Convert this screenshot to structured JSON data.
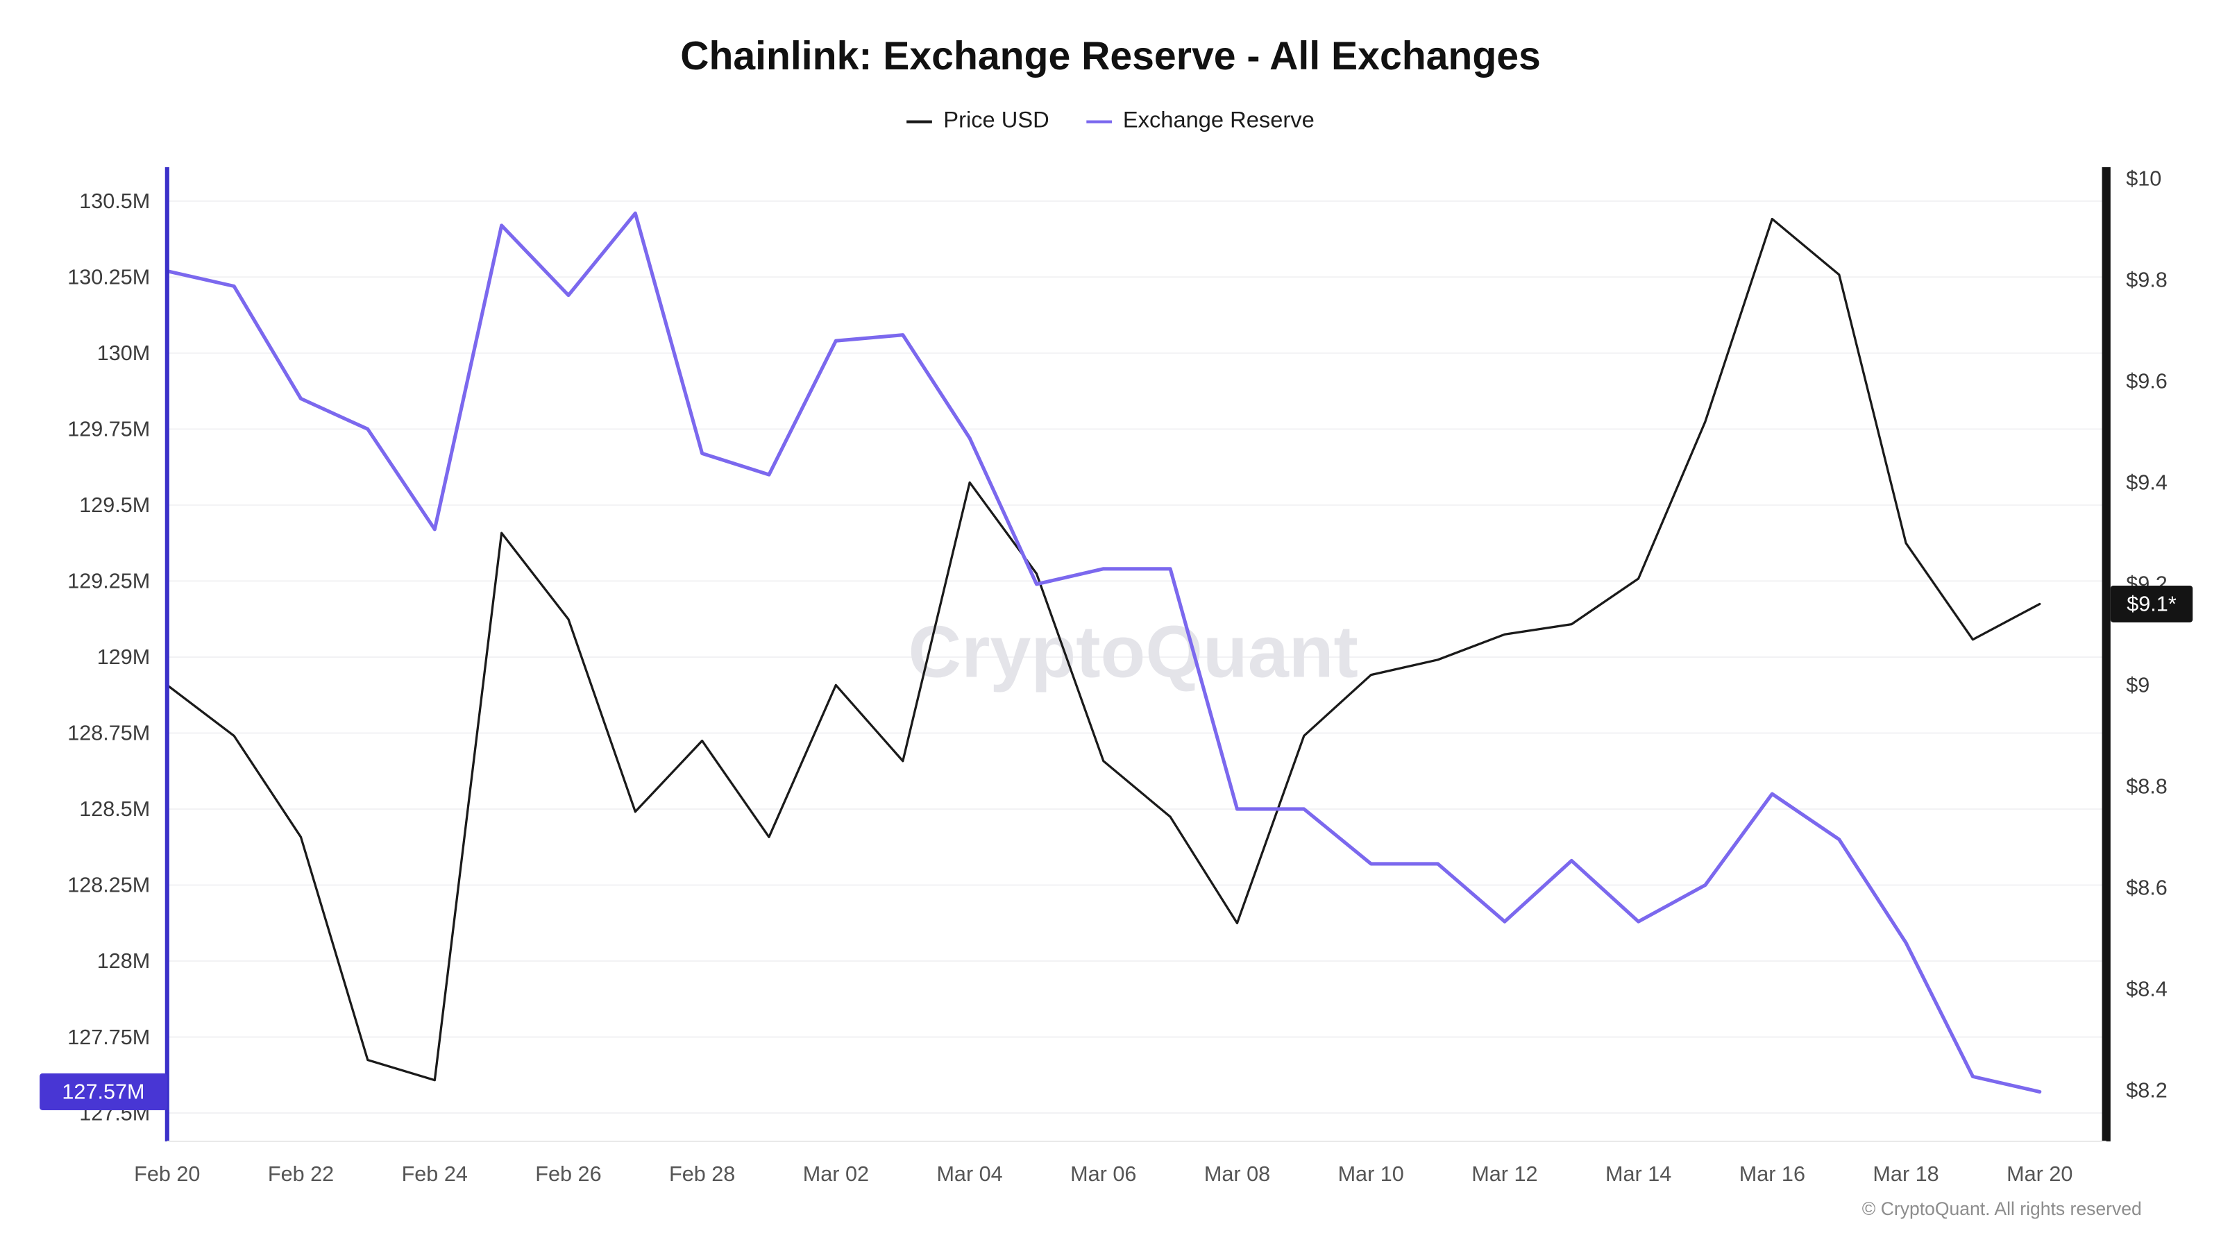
{
  "title": "Chainlink: Exchange Reserve - All Exchanges",
  "legend": [
    {
      "label": "Price USD",
      "color": "#1a1a1a"
    },
    {
      "label": "Exchange Reserve",
      "color": "#7b68ee"
    }
  ],
  "watermark": "CryptoQuant",
  "footer": "© CryptoQuant. All rights reserved",
  "badges": {
    "left": {
      "text": "127.57M",
      "color": "#4836d4"
    },
    "right": {
      "text": "$9.1*",
      "color": "#141414"
    }
  },
  "chart_data": {
    "type": "line",
    "x": [
      "Feb 20",
      "Feb 21",
      "Feb 22",
      "Feb 23",
      "Feb 24",
      "Feb 25",
      "Feb 26",
      "Feb 27",
      "Feb 28",
      "Mar 01",
      "Mar 02",
      "Mar 03",
      "Mar 04",
      "Mar 05",
      "Mar 06",
      "Mar 07",
      "Mar 08",
      "Mar 09",
      "Mar 10",
      "Mar 11",
      "Mar 12",
      "Mar 13",
      "Mar 14",
      "Mar 15",
      "Mar 16",
      "Mar 17",
      "Mar 18",
      "Mar 19",
      "Mar 20"
    ],
    "x_tick_labels": [
      "Feb 20",
      "Feb 22",
      "Feb 24",
      "Feb 26",
      "Feb 28",
      "Mar 02",
      "Mar 04",
      "Mar 06",
      "Mar 08",
      "Mar 10",
      "Mar 12",
      "Mar 14",
      "Mar 16",
      "Mar 18",
      "Mar 20"
    ],
    "series": [
      {
        "name": "Price USD",
        "axis": "right",
        "color": "#1a1a1a",
        "values": [
          9.0,
          8.9,
          8.7,
          8.26,
          8.22,
          9.3,
          9.13,
          8.75,
          8.89,
          8.7,
          9.0,
          8.85,
          9.4,
          9.22,
          8.85,
          8.74,
          8.53,
          8.9,
          9.02,
          9.05,
          9.1,
          9.12,
          9.21,
          9.52,
          9.92,
          9.81,
          9.28,
          9.09,
          9.16
        ]
      },
      {
        "name": "Exchange Reserve",
        "axis": "left",
        "color": "#7b68ee",
        "values": [
          130.27,
          130.22,
          129.85,
          129.75,
          129.42,
          130.42,
          130.19,
          130.46,
          129.67,
          129.6,
          130.04,
          130.06,
          129.72,
          129.24,
          129.29,
          129.29,
          128.5,
          128.5,
          128.32,
          128.32,
          128.13,
          128.33,
          128.13,
          128.25,
          128.55,
          128.4,
          128.06,
          127.62,
          127.57
        ]
      }
    ],
    "left_axis": {
      "title": "Exchange Reserve",
      "min": 127.5,
      "max": 130.5,
      "ticks": [
        {
          "label": "130.5M",
          "value": 130.5
        },
        {
          "label": "130.25M",
          "value": 130.25
        },
        {
          "label": "130M",
          "value": 130.0
        },
        {
          "label": "129.75M",
          "value": 129.75
        },
        {
          "label": "129.5M",
          "value": 129.5
        },
        {
          "label": "129.25M",
          "value": 129.25
        },
        {
          "label": "129M",
          "value": 129.0
        },
        {
          "label": "128.75M",
          "value": 128.75
        },
        {
          "label": "128.5M",
          "value": 128.5
        },
        {
          "label": "128.25M",
          "value": 128.25
        },
        {
          "label": "128M",
          "value": 128.0
        },
        {
          "label": "127.75M",
          "value": 127.75
        },
        {
          "label": "127.5M",
          "value": 127.5
        }
      ]
    },
    "right_axis": {
      "title": "Price USD",
      "min": 8.2,
      "max": 10.0,
      "ticks": [
        {
          "label": "$10",
          "value": 10.0
        },
        {
          "label": "$9.8",
          "value": 9.8
        },
        {
          "label": "$9.6",
          "value": 9.6
        },
        {
          "label": "$9.4",
          "value": 9.4
        },
        {
          "label": "$9.2",
          "value": 9.2
        },
        {
          "label": "$9",
          "value": 9.0
        },
        {
          "label": "$8.8",
          "value": 8.8
        },
        {
          "label": "$8.6",
          "value": 8.6
        },
        {
          "label": "$8.4",
          "value": 8.4
        },
        {
          "label": "$8.2",
          "value": 8.2
        }
      ]
    },
    "grid": "horizontal",
    "legend_position": "top"
  }
}
